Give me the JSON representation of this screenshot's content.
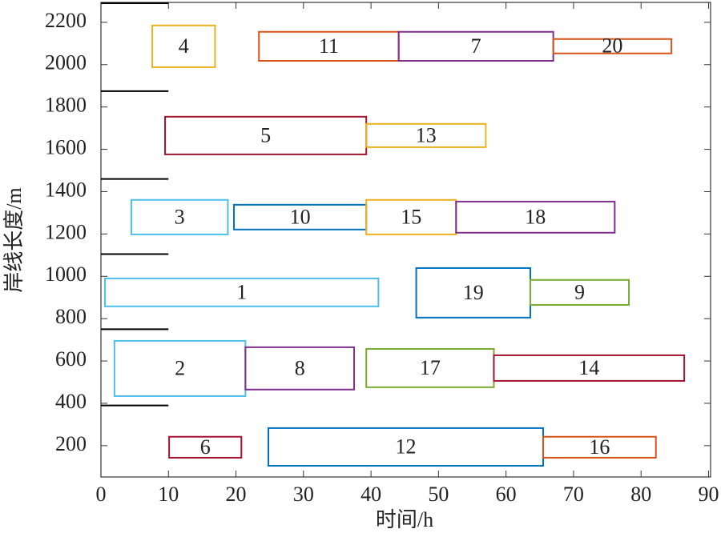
{
  "chart_data": {
    "type": "gantt",
    "x_label": "时间/h",
    "y_label": "岸线长度/m",
    "xlim": [
      0,
      90.3
    ],
    "ylim": [
      52,
      2294
    ],
    "xticks": [
      0,
      10,
      20,
      30,
      40,
      50,
      60,
      70,
      80,
      90
    ],
    "yticks": [
      200,
      400,
      600,
      800,
      1000,
      1200,
      1400,
      1600,
      1800,
      2000,
      2200
    ],
    "boundaries": [
      390,
      750,
      1105,
      1460,
      1875,
      2290
    ],
    "boundary_xrange": [
      0,
      10
    ],
    "tasks": [
      {
        "label": "4",
        "start": 7.6,
        "end": 16.9,
        "bottom": 1988,
        "top": 2185,
        "color": "#edb120"
      },
      {
        "label": "11",
        "start": 23.4,
        "end": 44.1,
        "bottom": 2018,
        "top": 2155,
        "color": "#d95319"
      },
      {
        "label": "7",
        "start": 44.1,
        "end": 67.0,
        "bottom": 2018,
        "top": 2155,
        "color": "#7e2f8e"
      },
      {
        "label": "20",
        "start": 67.0,
        "end": 84.5,
        "bottom": 2053,
        "top": 2121,
        "color": "#d95319"
      },
      {
        "label": "5",
        "start": 9.5,
        "end": 39.3,
        "bottom": 1576,
        "top": 1754,
        "color": "#a2142f"
      },
      {
        "label": "13",
        "start": 39.3,
        "end": 57.0,
        "bottom": 1610,
        "top": 1720,
        "color": "#edb120"
      },
      {
        "label": "3",
        "start": 4.5,
        "end": 18.8,
        "bottom": 1198,
        "top": 1361,
        "color": "#4dbeee"
      },
      {
        "label": "10",
        "start": 19.7,
        "end": 39.3,
        "bottom": 1221,
        "top": 1338,
        "color": "#0072bd"
      },
      {
        "label": "15",
        "start": 39.3,
        "end": 52.6,
        "bottom": 1198,
        "top": 1361,
        "color": "#edb120"
      },
      {
        "label": "18",
        "start": 52.6,
        "end": 76.1,
        "bottom": 1206,
        "top": 1353,
        "color": "#7e2f8e"
      },
      {
        "label": "1",
        "start": 0.6,
        "end": 41.1,
        "bottom": 858,
        "top": 990,
        "color": "#4dbeee"
      },
      {
        "label": "19",
        "start": 46.7,
        "end": 63.6,
        "bottom": 805,
        "top": 1039,
        "color": "#0072bd"
      },
      {
        "label": "9",
        "start": 63.6,
        "end": 78.2,
        "bottom": 865,
        "top": 983,
        "color": "#77ac30"
      },
      {
        "label": "2",
        "start": 2.0,
        "end": 21.4,
        "bottom": 434,
        "top": 695,
        "color": "#4dbeee"
      },
      {
        "label": "8",
        "start": 21.4,
        "end": 37.5,
        "bottom": 465,
        "top": 665,
        "color": "#7e2f8e"
      },
      {
        "label": "17",
        "start": 39.3,
        "end": 58.2,
        "bottom": 476,
        "top": 657,
        "color": "#77ac30"
      },
      {
        "label": "14",
        "start": 58.2,
        "end": 86.4,
        "bottom": 506,
        "top": 627,
        "color": "#a2142f"
      },
      {
        "label": "6",
        "start": 10.1,
        "end": 20.8,
        "bottom": 143,
        "top": 242,
        "color": "#a2142f"
      },
      {
        "label": "12",
        "start": 24.8,
        "end": 65.5,
        "bottom": 105,
        "top": 283,
        "color": "#0072bd"
      },
      {
        "label": "16",
        "start": 65.5,
        "end": 82.2,
        "bottom": 143,
        "top": 242,
        "color": "#d95319"
      }
    ]
  }
}
